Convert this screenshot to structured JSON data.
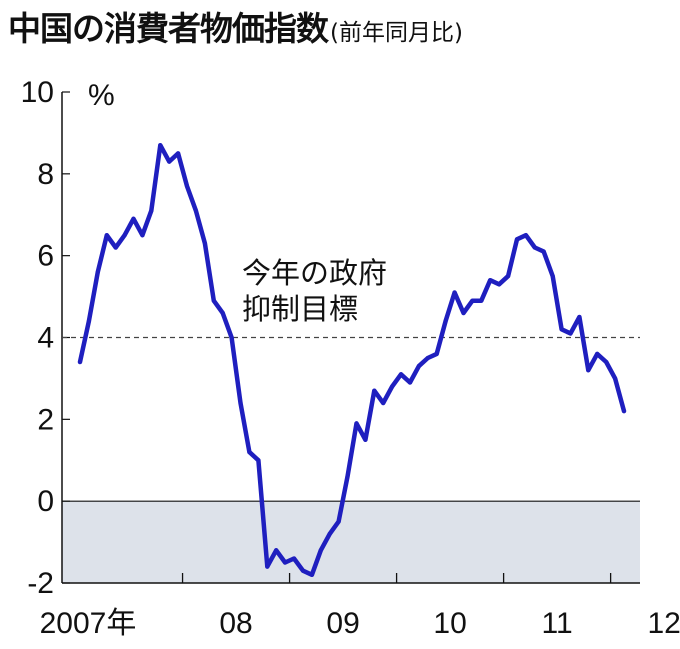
{
  "title": {
    "main": "中国の消費者物価指数",
    "sub": "(前年同月比)"
  },
  "colors": {
    "line": "#1f1fbf",
    "negative_band": "#dde2ea",
    "axis": "#111111",
    "reference_line": "#444444"
  },
  "chart_data": {
    "type": "line",
    "title": "中国の消費者物価指数",
    "subtitle": "(前年同月比)",
    "ylabel": "%",
    "xlabel": "",
    "ylim": [
      -2,
      10
    ],
    "yticks": [
      10,
      8,
      6,
      4,
      2,
      0,
      -2
    ],
    "x_start": "2007-01",
    "x_end": "2012-12",
    "year_labels": [
      "2007年",
      "08",
      "09",
      "10",
      "11",
      "12"
    ],
    "negative_region_shaded": true,
    "reference_line": {
      "value": 4,
      "style": "dashed",
      "label_lines": [
        "今年の政府",
        "抑制目標"
      ]
    },
    "series": [
      {
        "values": [
          3.4,
          4.4,
          5.6,
          6.5,
          6.2,
          6.5,
          6.9,
          6.5,
          7.1,
          8.7,
          8.3,
          8.5,
          7.7,
          7.1,
          6.3,
          4.9,
          4.6,
          4.0,
          2.4,
          1.2,
          1.0,
          -1.6,
          -1.2,
          -1.5,
          -1.4,
          -1.7,
          -1.8,
          -1.2,
          -0.8,
          -0.5,
          0.6,
          1.9,
          1.5,
          2.7,
          2.4,
          2.8,
          3.1,
          2.9,
          3.3,
          3.5,
          3.6,
          4.4,
          5.1,
          4.6,
          4.9,
          4.9,
          5.4,
          5.3,
          5.5,
          6.4,
          6.5,
          6.2,
          6.1,
          5.5,
          4.2,
          4.1,
          4.5,
          3.2,
          3.6,
          3.4,
          3.0,
          2.2
        ]
      }
    ]
  }
}
